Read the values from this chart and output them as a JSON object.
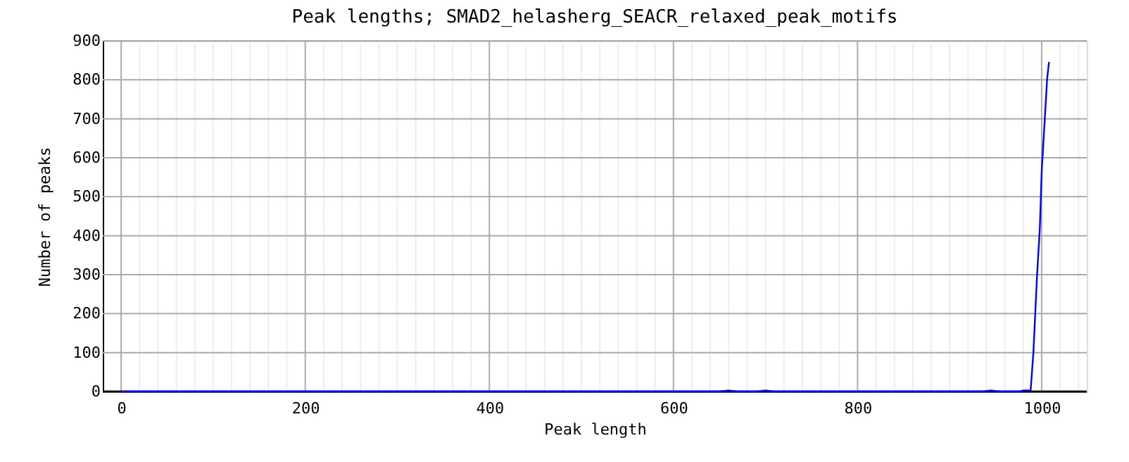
{
  "chart_data": {
    "type": "line",
    "title": "Peak lengths; SMAD2_helasherg_SEACR_relaxed_peak_motifs",
    "xlabel": "Peak length",
    "ylabel": "Number of peaks",
    "series": [
      {
        "color": "#0000ff",
        "x": [
          0,
          650,
          660,
          670,
          690,
          700,
          710,
          935,
          945,
          955,
          975,
          980,
          988,
          991,
          995,
          998,
          1000,
          1003,
          1006,
          1008
        ],
        "values": [
          0,
          0,
          3,
          0,
          0,
          3,
          0,
          0,
          3,
          0,
          0,
          3,
          3,
          100,
          299,
          419,
          564,
          684,
          805,
          846
        ]
      }
    ],
    "xlim": [
      -20,
      1049
    ],
    "ylim": [
      0,
      900
    ],
    "xticks": [
      0,
      {
        "value": 20,
        "label": null
      },
      {
        "value": 40,
        "label": null
      },
      {
        "value": 60,
        "label": null
      },
      {
        "value": 80,
        "label": null
      },
      {
        "value": 100,
        "label": null
      },
      {
        "value": 120,
        "label": null
      },
      {
        "value": 140,
        "label": null
      },
      {
        "value": 160,
        "label": null
      },
      {
        "value": 180,
        "label": null
      },
      200,
      {
        "value": 220,
        "label": null
      },
      {
        "value": 240,
        "label": null
      },
      {
        "value": 260,
        "label": null
      },
      {
        "value": 280,
        "label": null
      },
      {
        "value": 300,
        "label": null
      },
      {
        "value": 320,
        "label": null
      },
      {
        "value": 340,
        "label": null
      },
      {
        "value": 360,
        "label": null
      },
      {
        "value": 380,
        "label": null
      },
      400,
      {
        "value": 420,
        "label": null
      },
      {
        "value": 440,
        "label": null
      },
      {
        "value": 460,
        "label": null
      },
      {
        "value": 480,
        "label": null
      },
      {
        "value": 500,
        "label": null
      },
      {
        "value": 520,
        "label": null
      },
      {
        "value": 540,
        "label": null
      },
      {
        "value": 560,
        "label": null
      },
      {
        "value": 580,
        "label": null
      },
      600,
      {
        "value": 620,
        "label": null
      },
      {
        "value": 640,
        "label": null
      },
      {
        "value": 660,
        "label": null
      },
      {
        "value": 680,
        "label": null
      },
      {
        "value": 700,
        "label": null
      },
      {
        "value": 720,
        "label": null
      },
      {
        "value": 740,
        "label": null
      },
      {
        "value": 760,
        "label": null
      },
      {
        "value": 780,
        "label": null
      },
      800,
      {
        "value": 820,
        "label": null
      },
      {
        "value": 840,
        "label": null
      },
      {
        "value": 860,
        "label": null
      },
      {
        "value": 880,
        "label": null
      },
      {
        "value": 900,
        "label": null
      },
      {
        "value": 920,
        "label": null
      },
      {
        "value": 940,
        "label": null
      },
      {
        "value": 960,
        "label": null
      },
      {
        "value": 980,
        "label": null
      },
      1000,
      {
        "value": 1020,
        "label": null
      },
      {
        "value": 1040,
        "label": null
      }
    ],
    "yticks": [
      0,
      100,
      200,
      300,
      400,
      500,
      600,
      700,
      800,
      900
    ],
    "grid": true,
    "marker": "none",
    "line_style": "solid"
  }
}
